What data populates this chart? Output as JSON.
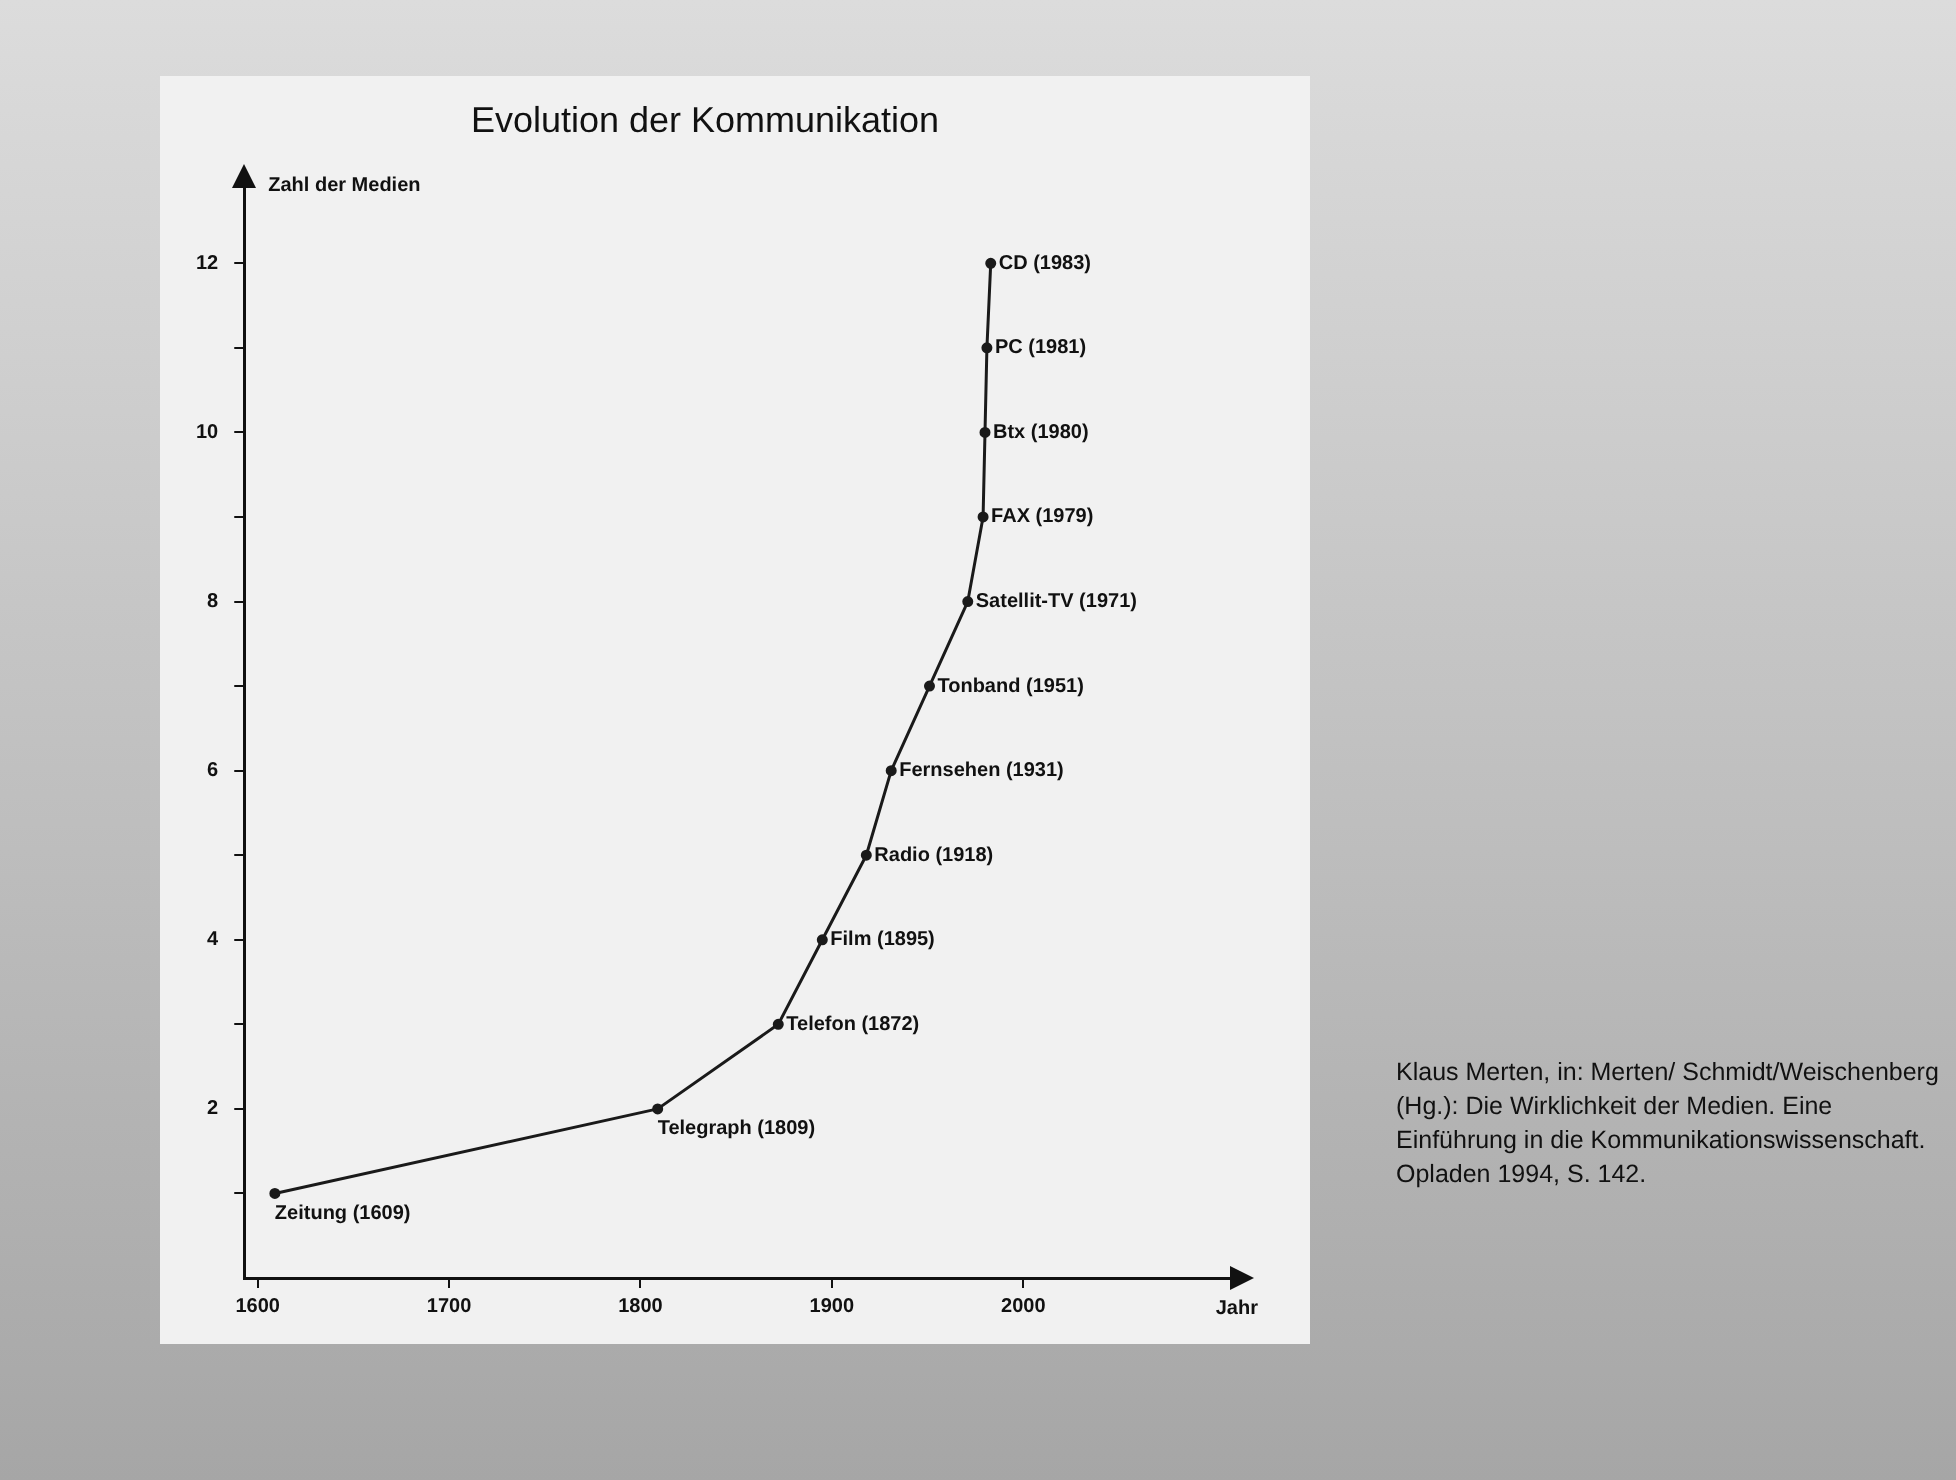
{
  "chart_data": {
    "type": "line",
    "title": "Evolution der Kommunikation",
    "xlabel": "Jahr",
    "ylabel": "Zahl der Medien",
    "x": [
      1609,
      1809,
      1872,
      1895,
      1918,
      1931,
      1951,
      1971,
      1979,
      1980,
      1981,
      1983
    ],
    "values": [
      1,
      2,
      3,
      4,
      5,
      6,
      7,
      8,
      9,
      10,
      11,
      12
    ],
    "color": "#1a1a1a",
    "marker": "circle",
    "line_style": "solid",
    "grid": false,
    "legend": false,
    "xlim": [
      1593,
      2108
    ],
    "xticks": [
      1600,
      1700,
      1800,
      1900,
      2000
    ],
    "ylim": [
      0,
      12.9
    ],
    "yticks": [
      {
        "value": 1,
        "label": null
      },
      2,
      {
        "value": 3,
        "label": null
      },
      4,
      {
        "value": 5,
        "label": null
      },
      6,
      {
        "value": 7,
        "label": null
      },
      8,
      {
        "value": 9,
        "label": null
      },
      10,
      {
        "value": 11,
        "label": null
      },
      12
    ],
    "annotations": [
      {
        "text": "Zeitung (1609)",
        "x": 1609,
        "y": 1
      },
      {
        "text": "Telegraph (1809)",
        "x": 1809,
        "y": 2
      },
      {
        "text": "Telefon (1872)",
        "x": 1872,
        "y": 3
      },
      {
        "text": "Film (1895)",
        "x": 1895,
        "y": 4
      },
      {
        "text": "Radio (1918)",
        "x": 1918,
        "y": 5
      },
      {
        "text": "Fernsehen (1931)",
        "x": 1931,
        "y": 6
      },
      {
        "text": "Tonband (1951)",
        "x": 1951,
        "y": 7
      },
      {
        "text": "Satellit-TV (1971)",
        "x": 1971,
        "y": 8
      },
      {
        "text": "FAX (1979)",
        "x": 1979,
        "y": 9
      },
      {
        "text": "Btx (1980)",
        "x": 1980,
        "y": 10
      },
      {
        "text": "PC (1981)",
        "x": 1981,
        "y": 11
      },
      {
        "text": "CD (1983)",
        "x": 1983,
        "y": 12
      },
      "Klaus Merten, in: Merten/ Schmidt/Weischenberg (Hg.): Die Wirklichkeit der Medien. Eine Einführung in die Kommunikationswissenschaft. Opladen 1994, S. 142."
    ]
  }
}
